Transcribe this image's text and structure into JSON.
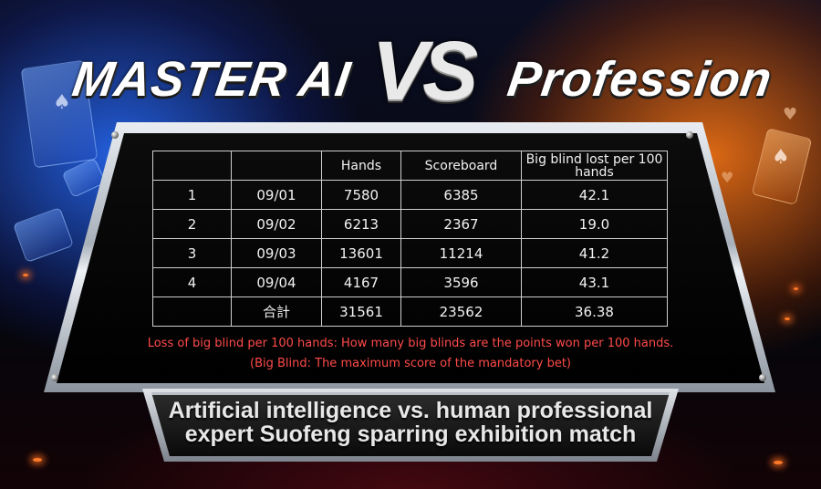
{
  "title": {
    "left": "MASTER AI",
    "vs": "VS",
    "right": "Profession"
  },
  "table": {
    "headers": [
      "",
      "",
      "Hands",
      "Scoreboard",
      "Big blind lost per 100 hands"
    ],
    "rows": [
      [
        "1",
        "09/01",
        "7580",
        "6385",
        "42.1"
      ],
      [
        "2",
        "09/02",
        "6213",
        "2367",
        "19.0"
      ],
      [
        "3",
        "09/03",
        "13601",
        "11214",
        "41.2"
      ],
      [
        "4",
        "09/04",
        "4167",
        "3596",
        "43.1"
      ]
    ],
    "total": [
      "",
      "合計",
      "31561",
      "23562",
      "36.38"
    ]
  },
  "notes": {
    "line1": "Loss of big blind per 100 hands: How many big blinds are the points won per 100 hands.",
    "line2": "(Big Blind: The maximum score of the mandatory bet)"
  },
  "banner": {
    "line1": "Artificial intelligence vs. human professional",
    "line2": "expert Suofeng sparring exhibition match"
  },
  "colors": {
    "note_red": "#ff4a4a",
    "left_glow": "#286eff",
    "right_glow": "#ff7814"
  }
}
